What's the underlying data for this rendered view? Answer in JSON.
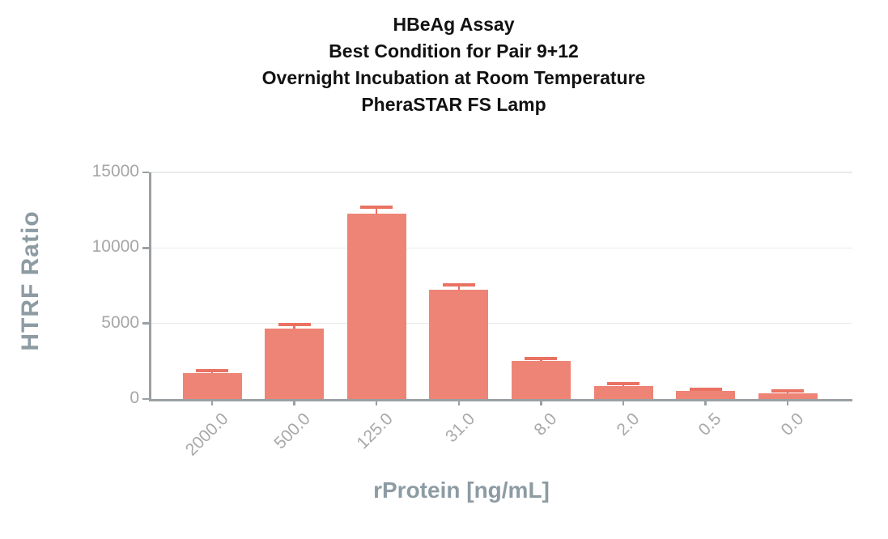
{
  "title": {
    "lines": [
      "HBeAg Assay",
      "Best Condition for Pair 9+12",
      "Overnight Incubation at Room Temperature",
      "PheraSTAR FS Lamp"
    ]
  },
  "chart_data": {
    "type": "bar",
    "title": "HBeAg Assay",
    "subtitle_lines": [
      "Best Condition for Pair 9+12",
      "Overnight Incubation at Room Temperature",
      "PheraSTAR FS Lamp"
    ],
    "categories": [
      "2000.0",
      "500.0",
      "125.0",
      "31.0",
      "8.0",
      "2.0",
      "0.5",
      "0.0"
    ],
    "values": [
      1700,
      4650,
      12250,
      7250,
      2500,
      850,
      520,
      400
    ],
    "error_plus": [
      150,
      300,
      450,
      300,
      180,
      170,
      140,
      140
    ],
    "xlabel": "rProtein [ng/mL]",
    "ylabel": "HTRF Ratio",
    "ylim": [
      0,
      15000
    ],
    "yticks": [
      0,
      5000,
      10000,
      15000
    ],
    "grid": "horizontal",
    "legend": "none",
    "colors": {
      "bar": "#ee8475",
      "error_bar": "#ea7263",
      "axis": "#9aa0a3",
      "grid": "#e9ebeb",
      "tick_label": "#a6a6a6",
      "axis_title": "#8d9ba3",
      "title": "#121212"
    }
  }
}
